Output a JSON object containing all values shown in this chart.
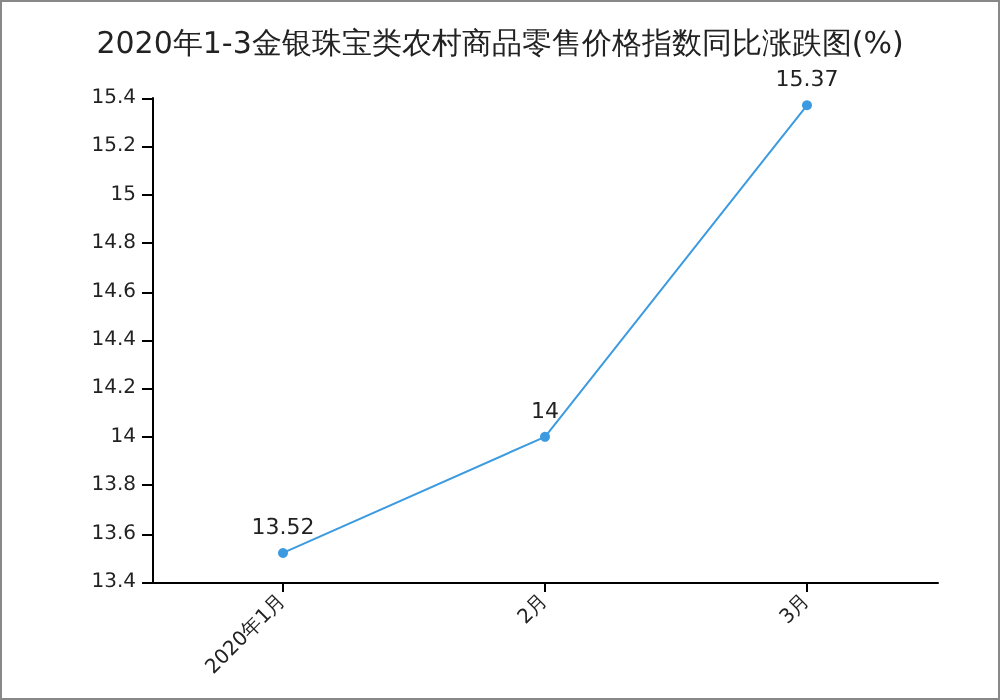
{
  "chart_data": {
    "type": "line",
    "title": "2020年1-3金银珠宝类农村商品零售价格指数同比涨跌图(%)",
    "categories": [
      "2020年1月",
      "2月",
      "3月"
    ],
    "series": [
      {
        "color": "#3c9be0",
        "values": [
          13.52,
          14,
          15.37
        ]
      }
    ],
    "ylim": [
      13.4,
      15.4
    ],
    "yticks": [
      13.4,
      13.6,
      13.8,
      14,
      14.2,
      14.4,
      14.6,
      14.8,
      15,
      15.2,
      15.4
    ],
    "grid": false,
    "marker": "circle",
    "line_style": "solid",
    "data_labels": true
  }
}
